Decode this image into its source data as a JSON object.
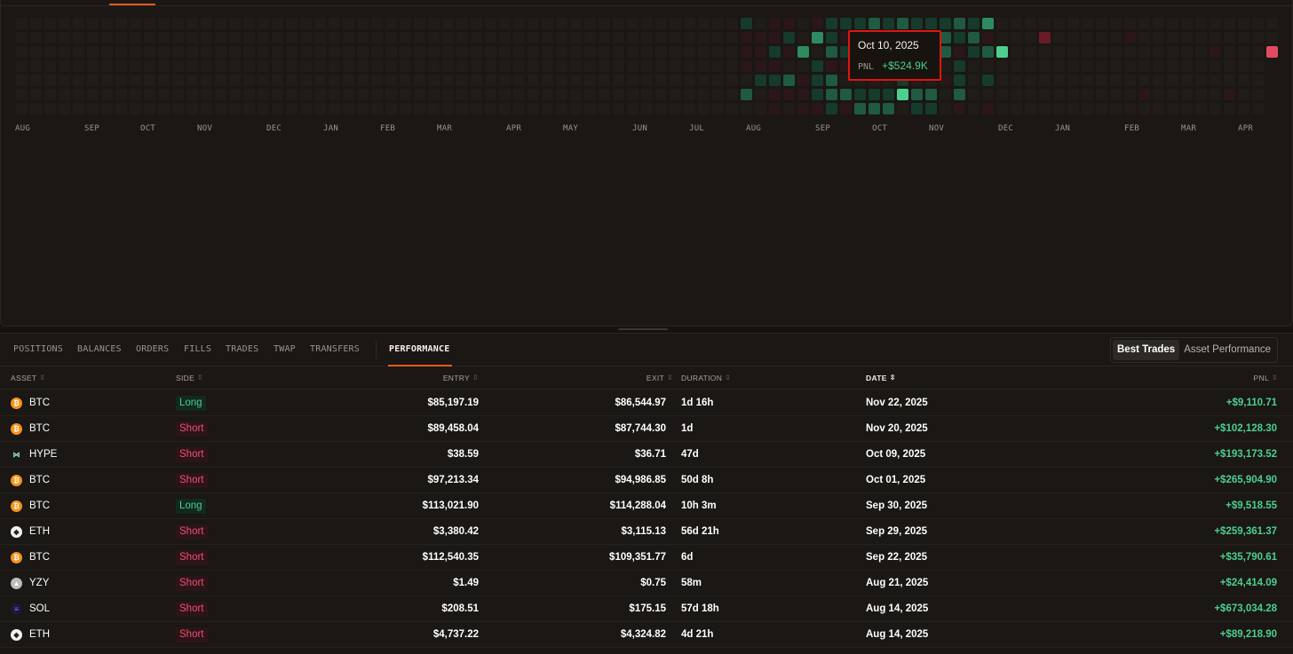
{
  "heatmap": {
    "months": [
      "AUG",
      "SEP",
      "OCT",
      "NOV",
      "DEC",
      "JAN",
      "FEB",
      "MAR",
      "APR",
      "MAY",
      "JUN",
      "JUL",
      "AUG",
      "SEP",
      "OCT",
      "NOV",
      "DEC",
      "JAN",
      "FEB",
      "MAR",
      "APR"
    ],
    "colors": {
      "empty": "#201d19",
      "pos_light": "#163a2c",
      "pos_mid": "#1f5a41",
      "pos_strong": "#2e8a60",
      "pos_bright": "#4ccf8f",
      "neg_light": "#2b1619",
      "neg_mid": "#6a1a26",
      "neg_bright": "#e04a62"
    }
  },
  "tooltip": {
    "date": "Oct 10, 2025",
    "label": "PNL",
    "value": "+$524.9K"
  },
  "tabs": [
    {
      "label": "POSITIONS"
    },
    {
      "label": "BALANCES"
    },
    {
      "label": "ORDERS"
    },
    {
      "label": "FILLS"
    },
    {
      "label": "TRADES"
    },
    {
      "label": "TWAP"
    },
    {
      "label": "TRANSFERS"
    },
    {
      "label": "PERFORMANCE",
      "active": true
    }
  ],
  "toggle": {
    "best": "Best Trades",
    "asset": "Asset Performance"
  },
  "columns": {
    "asset": "ASSET",
    "side": "SIDE",
    "entry": "ENTRY",
    "exit": "EXIT",
    "duration": "DURATION",
    "date": "DATE",
    "pnl": "PNL"
  },
  "rows": [
    {
      "asset": "BTC",
      "icon": "bitcoin-icon",
      "side": "Long",
      "entry": "$85,197.19",
      "exit": "$86,544.97",
      "duration": "1d 16h",
      "date": "Nov 22, 2025",
      "pnl": "+$9,110.71"
    },
    {
      "asset": "BTC",
      "icon": "bitcoin-icon",
      "side": "Short",
      "entry": "$89,458.04",
      "exit": "$87,744.30",
      "duration": "1d",
      "date": "Nov 20, 2025",
      "pnl": "+$102,128.30"
    },
    {
      "asset": "HYPE",
      "icon": "hype-icon",
      "side": "Short",
      "entry": "$38.59",
      "exit": "$36.71",
      "duration": "47d",
      "date": "Oct 09, 2025",
      "pnl": "+$193,173.52"
    },
    {
      "asset": "BTC",
      "icon": "bitcoin-icon",
      "side": "Short",
      "entry": "$97,213.34",
      "exit": "$94,986.85",
      "duration": "50d 8h",
      "date": "Oct 01, 2025",
      "pnl": "+$265,904.90"
    },
    {
      "asset": "BTC",
      "icon": "bitcoin-icon",
      "side": "Long",
      "entry": "$113,021.90",
      "exit": "$114,288.04",
      "duration": "10h 3m",
      "date": "Sep 30, 2025",
      "pnl": "+$9,518.55"
    },
    {
      "asset": "ETH",
      "icon": "ethereum-icon",
      "side": "Short",
      "entry": "$3,380.42",
      "exit": "$3,115.13",
      "duration": "56d 21h",
      "date": "Sep 29, 2025",
      "pnl": "+$259,361.37"
    },
    {
      "asset": "BTC",
      "icon": "bitcoin-icon",
      "side": "Short",
      "entry": "$112,540.35",
      "exit": "$109,351.77",
      "duration": "6d",
      "date": "Sep 22, 2025",
      "pnl": "+$35,790.61"
    },
    {
      "asset": "YZY",
      "icon": "yzy-icon",
      "side": "Short",
      "entry": "$1.49",
      "exit": "$0.75",
      "duration": "58m",
      "date": "Aug 21, 2025",
      "pnl": "+$24,414.09"
    },
    {
      "asset": "SOL",
      "icon": "solana-icon",
      "side": "Short",
      "entry": "$208.51",
      "exit": "$175.15",
      "duration": "57d 18h",
      "date": "Aug 14, 2025",
      "pnl": "+$673,034.28"
    },
    {
      "asset": "ETH",
      "icon": "ethereum-icon",
      "side": "Short",
      "entry": "$4,737.22",
      "exit": "$4,324.82",
      "duration": "4d 21h",
      "date": "Aug 14, 2025",
      "pnl": "+$89,218.90"
    }
  ]
}
